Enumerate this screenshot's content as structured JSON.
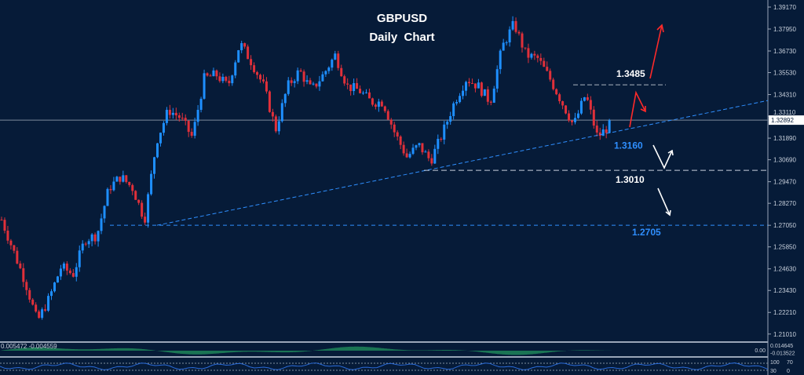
{
  "chart_data": {
    "type": "candlestick",
    "title": "GBPUSD",
    "subtitle": "Daily  Chart",
    "symbol": "GBPUSD",
    "timeframe": "Daily",
    "ylim": [
      1.2101,
      1.3917
    ],
    "y_ticks": [
      "1.39170",
      "1.37950",
      "1.36730",
      "1.35530",
      "1.34310",
      "1.33110",
      "1.31890",
      "1.30690",
      "1.29470",
      "1.28270",
      "1.27050",
      "1.25850",
      "1.24630",
      "1.23430",
      "1.22210",
      "1.21010"
    ],
    "current_price": "1.32892",
    "close_path": [
      1.2736,
      1.2562,
      1.2388,
      1.217,
      1.23,
      1.2475,
      1.2432,
      1.2627,
      1.2649,
      1.2911,
      1.2976,
      1.2911,
      1.2736,
      1.3172,
      1.3346,
      1.3303,
      1.3194,
      1.352,
      1.3542,
      1.3477,
      1.3717,
      1.3608,
      1.3477,
      1.3237,
      1.3477,
      1.3564,
      1.3455,
      1.3542,
      1.3651,
      1.3477,
      1.3455,
      1.339,
      1.339,
      1.3216,
      1.3085,
      1.315,
      1.3063,
      1.3216,
      1.339,
      1.352,
      1.3477,
      1.339,
      1.3695,
      1.3825,
      1.3651,
      1.363,
      1.352,
      1.339,
      1.3259,
      1.3433,
      1.3194,
      1.3259
    ],
    "levels": [
      {
        "label": "1.3485",
        "price": 1.3485,
        "color": "#ffffff",
        "style": "dashed"
      },
      {
        "label": "1.3160",
        "price": 1.316,
        "color": "#2f8fff",
        "style": "trendline"
      },
      {
        "label": "1.3010",
        "price": 1.301,
        "color": "#ffffff",
        "style": "dashed"
      },
      {
        "label": "1.2705",
        "price": 1.2705,
        "color": "#2f8fff",
        "style": "dashed"
      }
    ],
    "trendline": {
      "from_price": 1.2705,
      "to_price": 1.3398,
      "color": "#2f8fff"
    },
    "colors": {
      "up": "#1e8fff",
      "down": "#e0303a",
      "background": "#061b38"
    },
    "macd": {
      "values_label": "0.005472 -0.004559",
      "y_ticks": [
        "0.014645",
        "0.00",
        "-0.013522"
      ]
    },
    "stochastic": {
      "y_ticks": [
        "100",
        "70",
        "30",
        "0"
      ]
    },
    "grid": false
  }
}
